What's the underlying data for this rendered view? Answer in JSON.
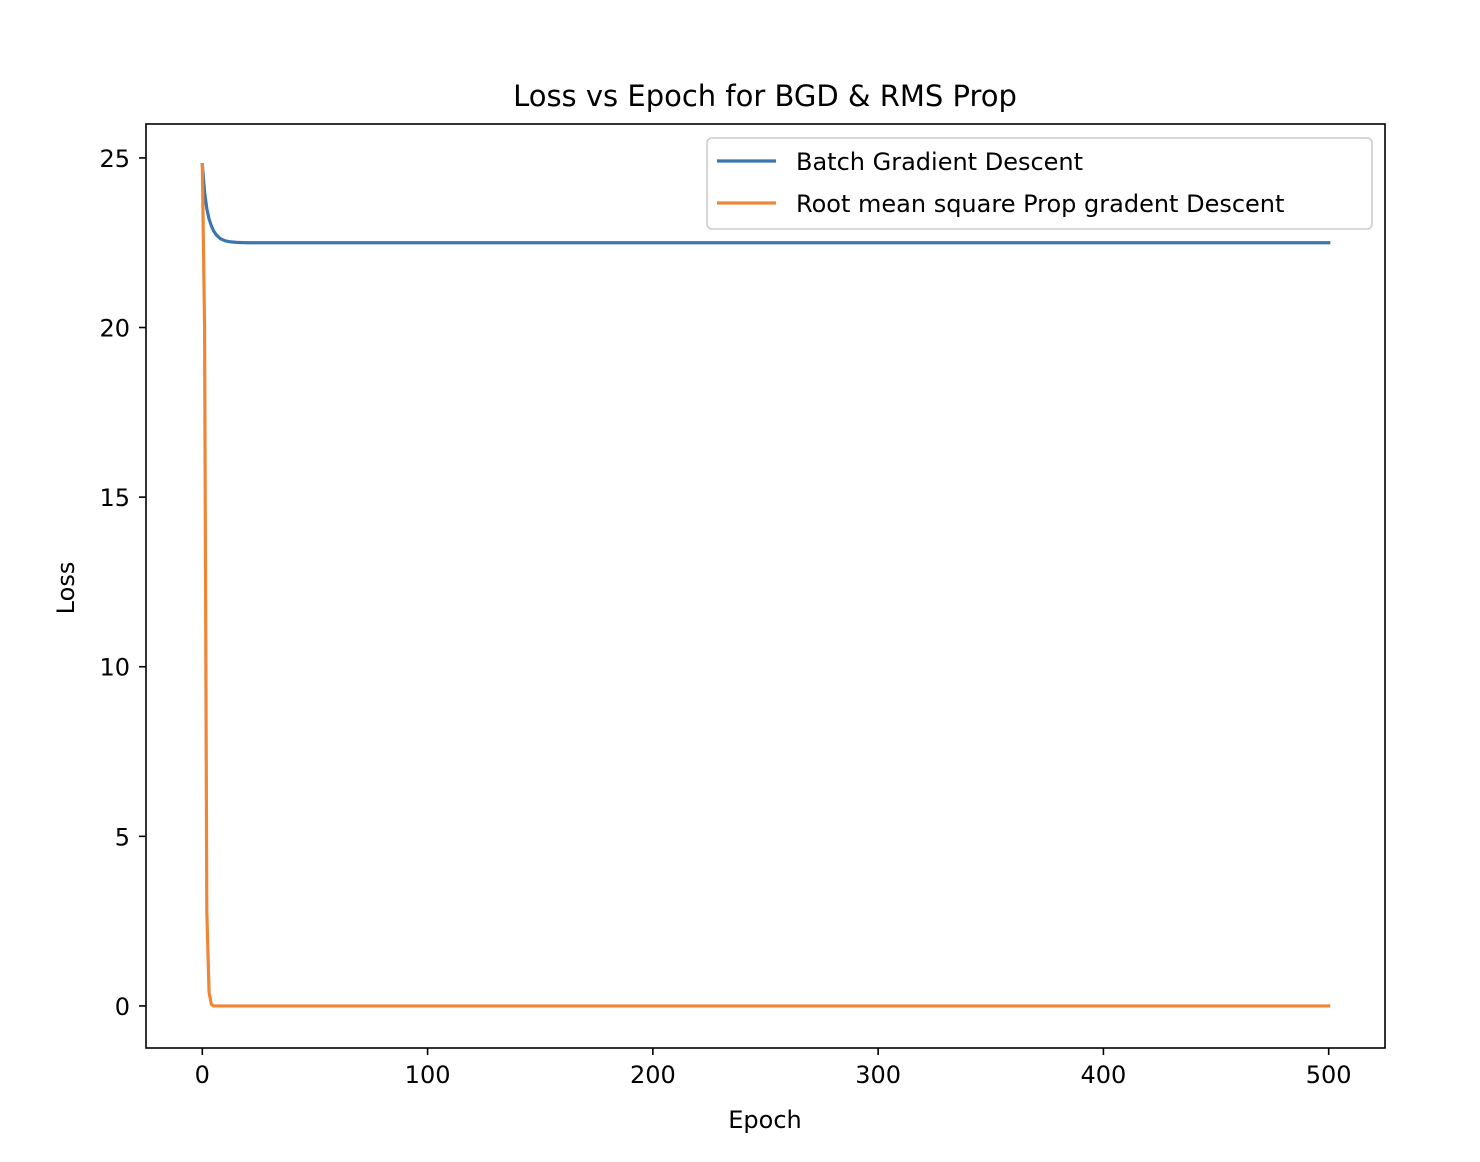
{
  "chart_data": {
    "type": "line",
    "title": "Loss vs Epoch for  BGD & RMS Prop",
    "xlabel": "Epoch",
    "ylabel": "Loss",
    "xlim": [
      -25,
      525
    ],
    "ylim": [
      -1.24,
      26.0
    ],
    "xticks": [
      0,
      100,
      200,
      300,
      400,
      500
    ],
    "yticks": [
      0,
      5,
      10,
      15,
      20,
      25
    ],
    "grid": false,
    "legend_position": "upper right",
    "series": [
      {
        "name": "Batch Gradient Descent",
        "color": "#3a75af",
        "x": [
          0,
          1,
          2,
          3,
          4,
          5,
          6,
          7,
          8,
          10,
          12,
          15,
          20,
          30,
          50,
          100,
          200,
          300,
          400,
          500
        ],
        "y": [
          24.8,
          24.0,
          23.5,
          23.2,
          23.0,
          22.85,
          22.75,
          22.68,
          22.62,
          22.56,
          22.53,
          22.51,
          22.5,
          22.5,
          22.5,
          22.5,
          22.5,
          22.5,
          22.5,
          22.5
        ]
      },
      {
        "name": "Root mean square Prop gradent Descent",
        "color": "#ef8636",
        "x": [
          0,
          1,
          2,
          3,
          4,
          5,
          6,
          10,
          50,
          100,
          200,
          300,
          400,
          500
        ],
        "y": [
          24.8,
          20.0,
          2.8,
          0.4,
          0.05,
          0.0,
          0.0,
          0.0,
          0.0,
          0.0,
          0.0,
          0.0,
          0.0,
          0.0
        ]
      }
    ]
  }
}
